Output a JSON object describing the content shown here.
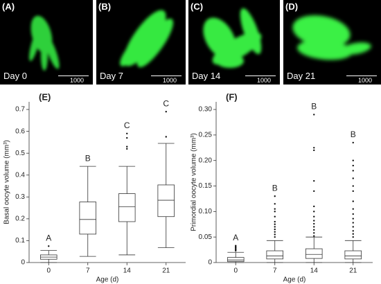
{
  "panels": [
    {
      "label": "(A)",
      "day": "Day 0",
      "scale": "1000"
    },
    {
      "label": "(B)",
      "day": "Day 7",
      "scale": "1000"
    },
    {
      "label": "(C)",
      "day": "Day 14",
      "scale": "1000"
    },
    {
      "label": "(D)",
      "day": "Day 21",
      "scale": "1000"
    }
  ],
  "chart_data": [
    {
      "type": "box",
      "panel_label": "(E)",
      "y_label": "Basal oocyte volume (mm³)",
      "x_label": "Age (d)",
      "categories": [
        "0",
        "7",
        "14",
        "21"
      ],
      "boxes": [
        {
          "low": 0,
          "q1": 0.015,
          "median": 0.025,
          "q3": 0.035,
          "high": 0.055,
          "outliers": [
            0.075
          ]
        },
        {
          "low": 0.028,
          "q1": 0.13,
          "median": 0.197,
          "q3": 0.277,
          "high": 0.44,
          "outliers": []
        },
        {
          "low": 0.035,
          "q1": 0.187,
          "median": 0.255,
          "q3": 0.315,
          "high": 0.44,
          "outliers": [
            0.52,
            0.53,
            0.57,
            0.59
          ]
        },
        {
          "low": 0.068,
          "q1": 0.21,
          "median": 0.285,
          "q3": 0.355,
          "high": 0.545,
          "outliers": [
            0.575,
            0.69
          ]
        }
      ],
      "annotations": [
        "A",
        "B",
        "C",
        "C"
      ],
      "ylim": [
        0,
        0.735
      ],
      "yticks": [
        0,
        0.1,
        0.2,
        0.3,
        0.4,
        0.5,
        0.6,
        0.7
      ]
    },
    {
      "type": "box",
      "panel_label": "(F)",
      "y_label": "Primordial oocyte volume (mm³)",
      "x_label": "Age (d)",
      "categories": [
        "0",
        "7",
        "14",
        "21"
      ],
      "boxes": [
        {
          "low": 0,
          "q1": 0.002,
          "median": 0.005,
          "q3": 0.01,
          "high": 0.02,
          "outliers": [
            0.023,
            0.025,
            0.027,
            0.029,
            0.031,
            0.033
          ]
        },
        {
          "low": 0,
          "q1": 0.007,
          "median": 0.013,
          "q3": 0.023,
          "high": 0.043,
          "outliers": [
            0.05,
            0.055,
            0.06,
            0.065,
            0.07,
            0.075,
            0.08,
            0.09,
            0.1,
            0.105,
            0.115,
            0.13
          ]
        },
        {
          "low": 0,
          "q1": 0.008,
          "median": 0.016,
          "q3": 0.027,
          "high": 0.05,
          "outliers": [
            0.052,
            0.058,
            0.064,
            0.07,
            0.076,
            0.082,
            0.09,
            0.1,
            0.11,
            0.14,
            0.16,
            0.22,
            0.225,
            0.29
          ]
        },
        {
          "low": 0,
          "q1": 0.007,
          "median": 0.013,
          "q3": 0.023,
          "high": 0.043,
          "outliers": [
            0.05,
            0.056,
            0.062,
            0.07,
            0.078,
            0.086,
            0.095,
            0.105,
            0.12,
            0.14,
            0.15,
            0.165,
            0.18,
            0.19,
            0.2,
            0.235
          ]
        }
      ],
      "annotations": [
        "A",
        "B",
        "B",
        "B"
      ],
      "ylim": [
        0,
        0.315
      ],
      "yticks": [
        0,
        0.05,
        {
          "value": 0.1,
          "label": "0.10"
        },
        0.15,
        {
          "value": 0.2,
          "label": "0.20"
        },
        0.25,
        {
          "value": 0.3,
          "label": "0.30"
        }
      ]
    }
  ]
}
